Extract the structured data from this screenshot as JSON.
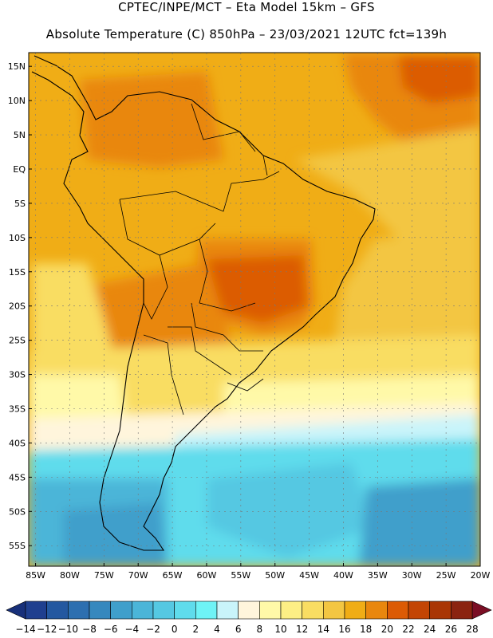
{
  "header": {
    "line1": "CPTEC/INPE/MCT –  Eta Model 15km – GFS",
    "line2": "Absolute Temperature (C) 850hPa – 23/03/2021 12UTC fct=139h"
  },
  "map": {
    "lat_range": [
      -58,
      17
    ],
    "lon_range": [
      -86,
      -20
    ],
    "lat_labels": [
      "15N",
      "10N",
      "5N",
      "EQ",
      "5S",
      "10S",
      "15S",
      "20S",
      "25S",
      "30S",
      "35S",
      "40S",
      "45S",
      "50S",
      "55S"
    ],
    "lon_labels": [
      "85W",
      "80W",
      "75W",
      "70W",
      "65W",
      "60W",
      "55W",
      "50W",
      "45W",
      "40W",
      "35W",
      "30W",
      "25W",
      "20W"
    ],
    "grid": true
  },
  "colorbar": {
    "labels": [
      "-14",
      "-12",
      "-10",
      "-8",
      "-6",
      "-4",
      "-2",
      "0",
      "2",
      "4",
      "6",
      "8",
      "10",
      "12",
      "14",
      "16",
      "18",
      "20",
      "22",
      "24",
      "26",
      "28"
    ],
    "colors": [
      "#1f3f8f",
      "#2458a0",
      "#2d6fb0",
      "#3688be",
      "#3f9fcb",
      "#4bb5d8",
      "#55c8e2",
      "#5fdcec",
      "#6ef3f6",
      "#c9f4fa",
      "#fff5dc",
      "#fff9a8",
      "#fdef85",
      "#f9dd62",
      "#f3c642",
      "#f0ad16",
      "#e9870e",
      "#dc5b05",
      "#c34504",
      "#a93605",
      "#8b2410"
    ],
    "under_color": "#18307a",
    "over_color": "#7a0e24"
  }
}
